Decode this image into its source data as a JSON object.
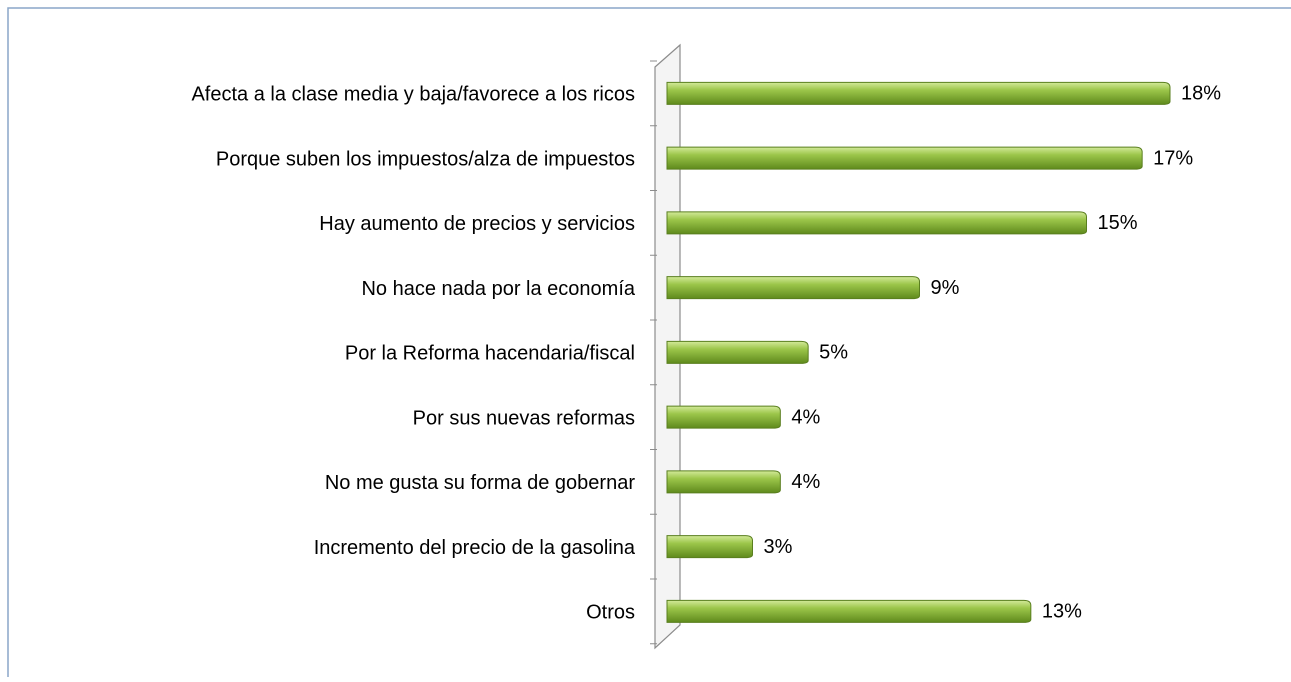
{
  "chart_data": {
    "type": "bar",
    "orientation": "horizontal",
    "categories": [
      "Afecta a la clase media y baja/favorece a los ricos",
      "Porque suben los impuestos/alza de impuestos",
      "Hay aumento de precios y servicios",
      "No hace nada por la economía",
      "Por la Reforma hacendaria/fiscal",
      "Por sus nuevas reformas",
      "No me gusta su forma de gobernar",
      "Incremento del precio de la gasolina",
      "Otros"
    ],
    "values": [
      18,
      17,
      15,
      9,
      5,
      4,
      4,
      3,
      13
    ],
    "value_labels": [
      "18%",
      "17%",
      "15%",
      "9%",
      "5%",
      "4%",
      "4%",
      "3%",
      "13%"
    ],
    "color": "#8db63c"
  }
}
